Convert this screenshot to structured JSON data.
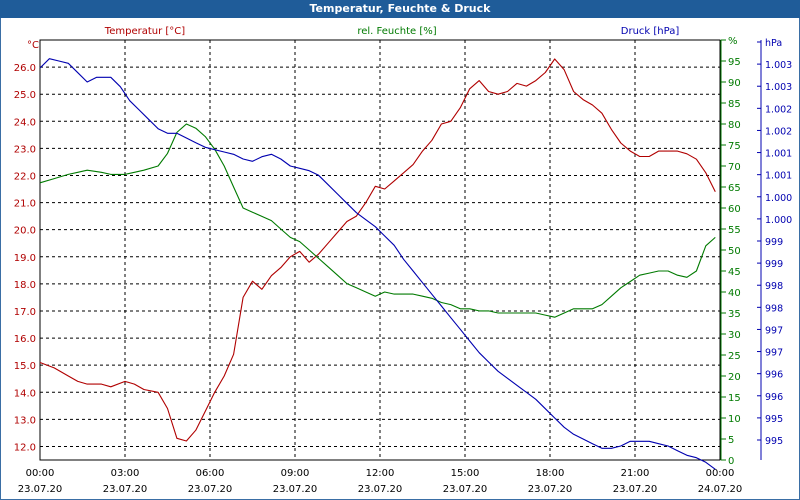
{
  "window": {
    "title": "Temperatur, Feuchte & Druck"
  },
  "chart_data": {
    "type": "line",
    "title": "Temperatur, Feuchte & Druck",
    "x_ticks": [
      {
        "time": "00:00",
        "date": "23.07.20"
      },
      {
        "time": "03:00",
        "date": "23.07.20"
      },
      {
        "time": "06:00",
        "date": "23.07.20"
      },
      {
        "time": "09:00",
        "date": "23.07.20"
      },
      {
        "time": "12:00",
        "date": "23.07.20"
      },
      {
        "time": "15:00",
        "date": "23.07.20"
      },
      {
        "time": "18:00",
        "date": "23.07.20"
      },
      {
        "time": "21:00",
        "date": "23.07.20"
      },
      {
        "time": "00:00",
        "date": "24.07.20"
      }
    ],
    "xlim": [
      "23.07.20 00:00",
      "24.07.20 00:00"
    ],
    "grid": true,
    "axes": {
      "temperature": {
        "label": "Temperatur [°C]",
        "unit": "°C",
        "ylim": [
          11.5,
          27.0
        ],
        "ticks": [
          "12.0",
          "13.0",
          "14.0",
          "15.0",
          "16.0",
          "17.0",
          "18.0",
          "19.0",
          "20.0",
          "21.0",
          "22.0",
          "23.0",
          "24.0",
          "25.0",
          "26.0"
        ],
        "color": "#b00000"
      },
      "humidity": {
        "label": "rel. Feuchte [%]",
        "unit": "%",
        "ylim": [
          0,
          100
        ],
        "ticks": [
          "0",
          "5",
          "10",
          "15",
          "20",
          "25",
          "30",
          "35",
          "40",
          "45",
          "50",
          "55",
          "60",
          "65",
          "70",
          "75",
          "80",
          "85",
          "90",
          "95",
          "%"
        ],
        "color": "#007a00"
      },
      "pressure": {
        "label": "Druck [hPa]",
        "unit": "hPa",
        "ylim": [
          994.5,
          1003.5
        ],
        "ticks": [
          "995",
          "995",
          "996",
          "996",
          "997",
          "997",
          "998",
          "998",
          "999",
          "999",
          "1.000",
          "1.000",
          "1.001",
          "1.001",
          "1.002",
          "1.002",
          "1.003",
          "1.003",
          "hPa"
        ],
        "color": "#0000b0"
      }
    },
    "series": [
      {
        "name": "Temperatur [°C]",
        "axis": "temperature",
        "color": "#b00000",
        "points": [
          [
            "00:00",
            15.1
          ],
          [
            "00:30",
            14.9
          ],
          [
            "01:00",
            14.6
          ],
          [
            "01:20",
            14.4
          ],
          [
            "01:40",
            14.3
          ],
          [
            "02:10",
            14.3
          ],
          [
            "02:30",
            14.2
          ],
          [
            "03:00",
            14.4
          ],
          [
            "03:20",
            14.3
          ],
          [
            "03:40",
            14.1
          ],
          [
            "04:10",
            14.0
          ],
          [
            "04:30",
            13.4
          ],
          [
            "04:50",
            12.3
          ],
          [
            "05:10",
            12.2
          ],
          [
            "05:30",
            12.6
          ],
          [
            "05:50",
            13.3
          ],
          [
            "06:10",
            14.0
          ],
          [
            "06:30",
            14.6
          ],
          [
            "06:50",
            15.4
          ],
          [
            "07:10",
            17.5
          ],
          [
            "07:30",
            18.1
          ],
          [
            "07:50",
            17.8
          ],
          [
            "08:10",
            18.3
          ],
          [
            "08:30",
            18.6
          ],
          [
            "08:50",
            19.0
          ],
          [
            "09:10",
            19.2
          ],
          [
            "09:30",
            18.8
          ],
          [
            "09:50",
            19.1
          ],
          [
            "10:10",
            19.5
          ],
          [
            "10:30",
            19.9
          ],
          [
            "10:50",
            20.3
          ],
          [
            "11:10",
            20.5
          ],
          [
            "11:30",
            21.0
          ],
          [
            "11:50",
            21.6
          ],
          [
            "12:10",
            21.5
          ],
          [
            "12:30",
            21.8
          ],
          [
            "12:50",
            22.1
          ],
          [
            "13:10",
            22.4
          ],
          [
            "13:30",
            22.9
          ],
          [
            "13:50",
            23.3
          ],
          [
            "14:10",
            23.9
          ],
          [
            "14:30",
            24.0
          ],
          [
            "14:50",
            24.5
          ],
          [
            "15:10",
            25.2
          ],
          [
            "15:30",
            25.5
          ],
          [
            "15:50",
            25.1
          ],
          [
            "16:10",
            25.0
          ],
          [
            "16:30",
            25.1
          ],
          [
            "16:50",
            25.4
          ],
          [
            "17:10",
            25.3
          ],
          [
            "17:30",
            25.5
          ],
          [
            "17:50",
            25.8
          ],
          [
            "18:10",
            26.3
          ],
          [
            "18:30",
            25.9
          ],
          [
            "18:50",
            25.1
          ],
          [
            "19:10",
            24.8
          ],
          [
            "19:30",
            24.6
          ],
          [
            "19:50",
            24.3
          ],
          [
            "20:10",
            23.7
          ],
          [
            "20:30",
            23.2
          ],
          [
            "20:50",
            22.9
          ],
          [
            "21:10",
            22.7
          ],
          [
            "21:30",
            22.7
          ],
          [
            "21:50",
            22.9
          ],
          [
            "22:10",
            22.9
          ],
          [
            "22:30",
            22.9
          ],
          [
            "22:50",
            22.8
          ],
          [
            "23:10",
            22.6
          ],
          [
            "23:30",
            22.1
          ],
          [
            "23:50",
            21.4
          ]
        ]
      },
      {
        "name": "rel. Feuchte [%]",
        "axis": "humidity",
        "color": "#007a00",
        "points": [
          [
            "00:00",
            66
          ],
          [
            "00:30",
            67
          ],
          [
            "01:00",
            68
          ],
          [
            "01:20",
            68.5
          ],
          [
            "01:40",
            69
          ],
          [
            "02:10",
            68.5
          ],
          [
            "02:30",
            68
          ],
          [
            "03:00",
            68
          ],
          [
            "03:20",
            68.5
          ],
          [
            "03:40",
            69
          ],
          [
            "04:10",
            70
          ],
          [
            "04:30",
            73
          ],
          [
            "04:50",
            78
          ],
          [
            "05:10",
            80
          ],
          [
            "05:30",
            79
          ],
          [
            "05:50",
            77
          ],
          [
            "06:10",
            74
          ],
          [
            "06:30",
            70
          ],
          [
            "06:50",
            65
          ],
          [
            "07:10",
            60
          ],
          [
            "07:30",
            59
          ],
          [
            "07:50",
            58
          ],
          [
            "08:10",
            57
          ],
          [
            "08:30",
            55
          ],
          [
            "08:50",
            53
          ],
          [
            "09:10",
            52
          ],
          [
            "09:30",
            50
          ],
          [
            "09:50",
            48
          ],
          [
            "10:10",
            46
          ],
          [
            "10:30",
            44
          ],
          [
            "10:50",
            42
          ],
          [
            "11:10",
            41
          ],
          [
            "11:30",
            40
          ],
          [
            "11:50",
            39
          ],
          [
            "12:10",
            40
          ],
          [
            "12:30",
            39.5
          ],
          [
            "12:50",
            39.5
          ],
          [
            "13:10",
            39.5
          ],
          [
            "13:30",
            39
          ],
          [
            "13:50",
            38.5
          ],
          [
            "14:10",
            37.5
          ],
          [
            "14:30",
            37
          ],
          [
            "14:50",
            36
          ],
          [
            "15:10",
            36
          ],
          [
            "15:30",
            35.5
          ],
          [
            "15:50",
            35.5
          ],
          [
            "16:10",
            35
          ],
          [
            "16:30",
            35
          ],
          [
            "16:50",
            35
          ],
          [
            "17:10",
            35
          ],
          [
            "17:30",
            35
          ],
          [
            "17:50",
            34.5
          ],
          [
            "18:10",
            34
          ],
          [
            "18:30",
            35
          ],
          [
            "18:50",
            36
          ],
          [
            "19:10",
            36
          ],
          [
            "19:30",
            36
          ],
          [
            "19:50",
            37
          ],
          [
            "20:10",
            39
          ],
          [
            "20:30",
            41
          ],
          [
            "20:50",
            42.5
          ],
          [
            "21:10",
            44
          ],
          [
            "21:30",
            44.5
          ],
          [
            "21:50",
            45
          ],
          [
            "22:10",
            45
          ],
          [
            "22:30",
            44
          ],
          [
            "22:50",
            43.5
          ],
          [
            "23:10",
            45
          ],
          [
            "23:30",
            51
          ],
          [
            "23:50",
            53
          ]
        ]
      },
      {
        "name": "Druck [hPa]",
        "axis": "pressure",
        "color": "#0000b0",
        "points": [
          [
            "00:00",
            1002.9
          ],
          [
            "00:20",
            1003.1
          ],
          [
            "00:40",
            1003.05
          ],
          [
            "01:00",
            1003.0
          ],
          [
            "01:20",
            1002.8
          ],
          [
            "01:40",
            1002.6
          ],
          [
            "02:00",
            1002.7
          ],
          [
            "02:30",
            1002.7
          ],
          [
            "02:50",
            1002.5
          ],
          [
            "03:10",
            1002.2
          ],
          [
            "03:30",
            1002.0
          ],
          [
            "03:50",
            1001.8
          ],
          [
            "04:10",
            1001.6
          ],
          [
            "04:30",
            1001.5
          ],
          [
            "04:50",
            1001.5
          ],
          [
            "05:10",
            1001.4
          ],
          [
            "05:30",
            1001.3
          ],
          [
            "05:50",
            1001.2
          ],
          [
            "06:10",
            1001.15
          ],
          [
            "06:30",
            1001.1
          ],
          [
            "06:50",
            1001.05
          ],
          [
            "07:10",
            1000.95
          ],
          [
            "07:30",
            1000.9
          ],
          [
            "07:50",
            1001.0
          ],
          [
            "08:10",
            1001.05
          ],
          [
            "08:30",
            1000.95
          ],
          [
            "08:50",
            1000.8
          ],
          [
            "09:10",
            1000.75
          ],
          [
            "09:30",
            1000.7
          ],
          [
            "09:50",
            1000.6
          ],
          [
            "10:10",
            1000.4
          ],
          [
            "10:30",
            1000.2
          ],
          [
            "10:50",
            1000.0
          ],
          [
            "11:10",
            999.8
          ],
          [
            "11:30",
            999.65
          ],
          [
            "11:50",
            999.5
          ],
          [
            "12:10",
            999.3
          ],
          [
            "12:30",
            999.1
          ],
          [
            "12:50",
            998.8
          ],
          [
            "13:10",
            998.55
          ],
          [
            "13:30",
            998.3
          ],
          [
            "13:50",
            998.05
          ],
          [
            "14:10",
            997.8
          ],
          [
            "14:30",
            997.55
          ],
          [
            "14:50",
            997.3
          ],
          [
            "15:10",
            997.05
          ],
          [
            "15:30",
            996.8
          ],
          [
            "15:50",
            996.6
          ],
          [
            "16:10",
            996.4
          ],
          [
            "16:30",
            996.25
          ],
          [
            "16:50",
            996.1
          ],
          [
            "17:10",
            995.95
          ],
          [
            "17:30",
            995.8
          ],
          [
            "17:50",
            995.6
          ],
          [
            "18:10",
            995.4
          ],
          [
            "18:30",
            995.2
          ],
          [
            "18:50",
            995.05
          ],
          [
            "19:10",
            994.95
          ],
          [
            "19:30",
            994.85
          ],
          [
            "19:50",
            994.75
          ],
          [
            "20:10",
            994.75
          ],
          [
            "20:30",
            994.8
          ],
          [
            "20:50",
            994.9
          ],
          [
            "21:10",
            994.9
          ],
          [
            "21:30",
            994.9
          ],
          [
            "21:50",
            994.85
          ],
          [
            "22:10",
            994.8
          ],
          [
            "22:30",
            994.7
          ],
          [
            "22:50",
            994.6
          ],
          [
            "23:10",
            994.55
          ],
          [
            "23:30",
            994.45
          ],
          [
            "23:50",
            994.3
          ]
        ]
      }
    ]
  }
}
